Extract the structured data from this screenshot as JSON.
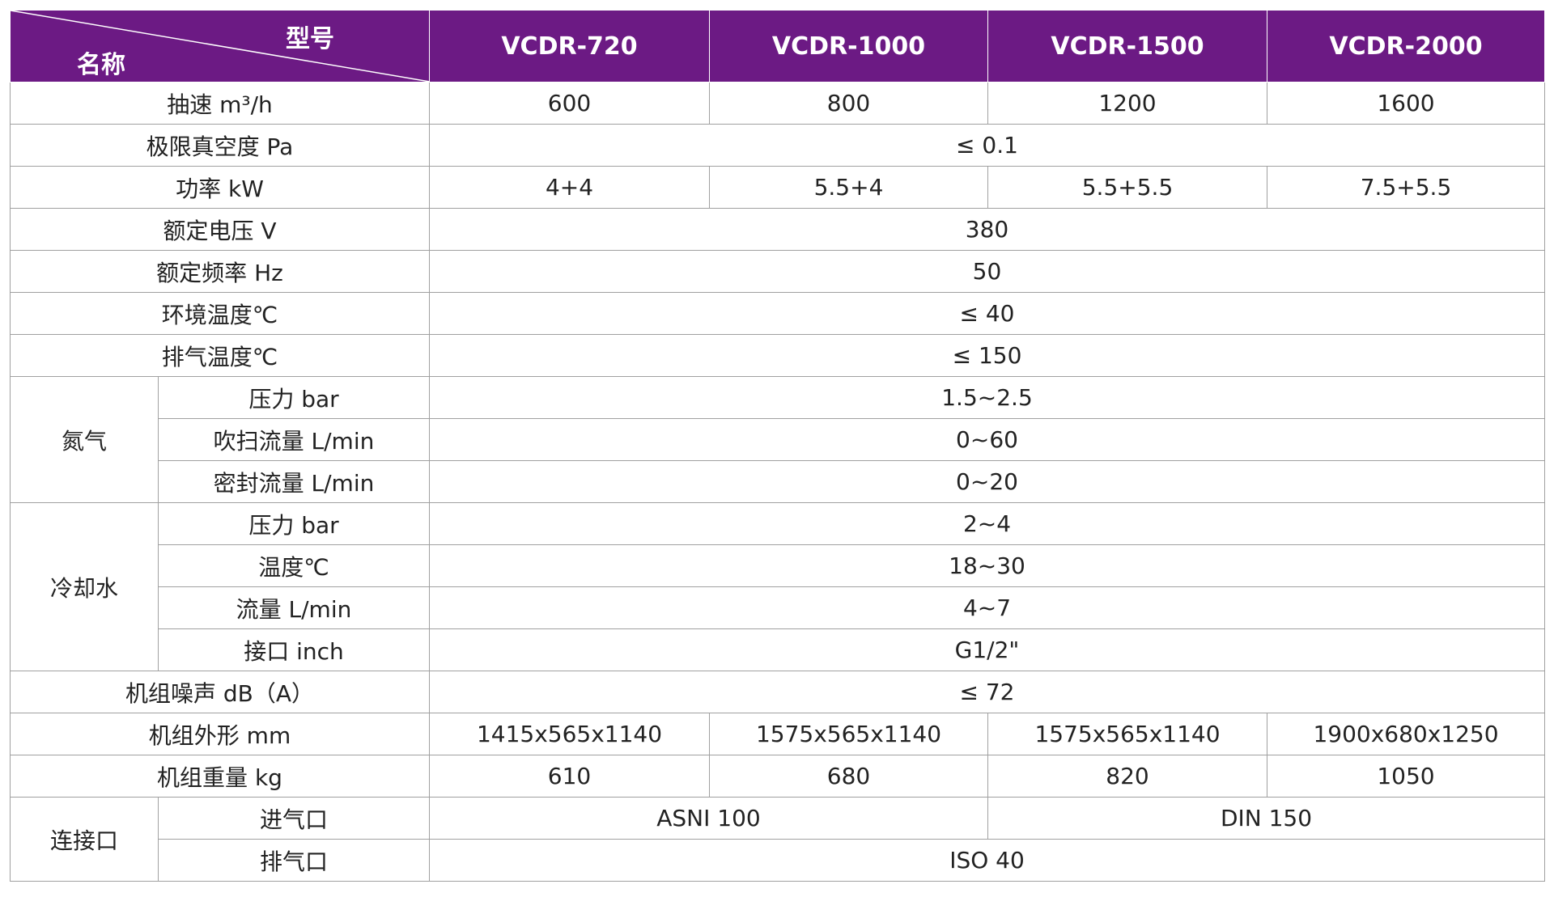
{
  "table": {
    "header": {
      "model_label": "型号",
      "name_label": "名称",
      "models": [
        "VCDR-720",
        "VCDR-1000",
        "VCDR-1500",
        "VCDR-2000"
      ]
    },
    "rows": [
      {
        "label": "抽速 m³/h",
        "cells": [
          "600",
          "800",
          "1200",
          "1600"
        ]
      },
      {
        "label": "极限真空度 Pa",
        "cells": [
          "≤ 0.1"
        ]
      },
      {
        "label": "功率 kW",
        "cells": [
          "4+4",
          "5.5+4",
          "5.5+5.5",
          "7.5+5.5"
        ]
      },
      {
        "label": "额定电压 V",
        "cells": [
          "380"
        ]
      },
      {
        "label": "额定频率 Hz",
        "cells": [
          "50"
        ]
      },
      {
        "label": "环境温度℃",
        "cells": [
          "≤ 40"
        ]
      },
      {
        "label": "排气温度℃",
        "cells": [
          "≤ 150"
        ]
      },
      {
        "group": "氮气",
        "items": [
          {
            "label": "压力 bar",
            "cells": [
              "1.5~2.5"
            ]
          },
          {
            "label": "吹扫流量 L/min",
            "cells": [
              "0~60"
            ]
          },
          {
            "label": "密封流量 L/min",
            "cells": [
              "0~20"
            ]
          }
        ]
      },
      {
        "group": "冷却水",
        "items": [
          {
            "label": "压力 bar",
            "cells": [
              "2~4"
            ]
          },
          {
            "label": "温度℃",
            "cells": [
              "18~30"
            ]
          },
          {
            "label": "流量 L/min",
            "cells": [
              "4~7"
            ]
          },
          {
            "label": "接口 inch",
            "cells": [
              "G1/2\""
            ]
          }
        ]
      },
      {
        "label": "机组噪声 dB（A）",
        "cells": [
          "≤ 72"
        ]
      },
      {
        "label": "机组外形 mm",
        "cells": [
          "1415x565x1140",
          "1575x565x1140",
          "1575x565x1140",
          "1900x680x1250"
        ]
      },
      {
        "label": "机组重量 kg",
        "cells": [
          "610",
          "680",
          "820",
          "1050"
        ]
      },
      {
        "group": "连接口",
        "items": [
          {
            "label": "进气口",
            "cells": [
              "ASNI 100",
              "DIN 150"
            ]
          },
          {
            "label": "排气口",
            "cells": [
              "ISO 40"
            ]
          }
        ]
      }
    ]
  }
}
